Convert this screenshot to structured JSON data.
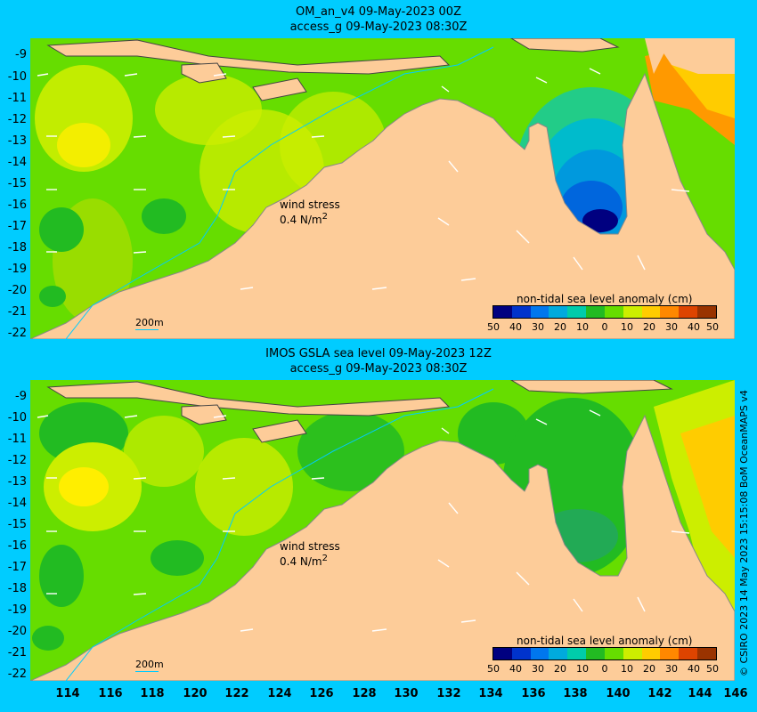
{
  "panels": [
    {
      "title_line1": "OM_an_v4  09-May-2023 00Z",
      "title_line2": "access_g 09-May-2023 08:30Z",
      "wind_label_line1": "wind stress",
      "wind_label_value": "0.4 N/m",
      "wind_label_sup": "2",
      "scale_label": "200m",
      "legend_title": "non-tidal sea level anomaly (cm)"
    },
    {
      "title_line1": "IMOS GSLA sea level  09-May-2023 12Z",
      "title_line2": "access_g 09-May-2023 08:30Z",
      "wind_label_line1": "wind stress",
      "wind_label_value": "0.4 N/m",
      "wind_label_sup": "2",
      "scale_label": "200m",
      "legend_title": "non-tidal sea level anomaly (cm)"
    }
  ],
  "y_ticks": [
    "-9",
    "-10",
    "-11",
    "-12",
    "-13",
    "-14",
    "-15",
    "-16",
    "-17",
    "-18",
    "-19",
    "-20",
    "-21",
    "-22"
  ],
  "x_ticks": [
    "114",
    "116",
    "118",
    "120",
    "122",
    "124",
    "126",
    "128",
    "130",
    "132",
    "134",
    "136",
    "138",
    "140",
    "142",
    "144",
    "146"
  ],
  "legend_ticks": [
    "50",
    "40",
    "30",
    "20",
    "10",
    "0",
    "10",
    "20",
    "30",
    "40",
    "50"
  ],
  "legend_colors": [
    "#000080",
    "#0033cc",
    "#0077ee",
    "#00aadd",
    "#00ccaa",
    "#22bb22",
    "#66dd00",
    "#ccee00",
    "#ffcc00",
    "#ff8800",
    "#dd4400",
    "#993300"
  ],
  "credit": "© CSIRO 2023   14 May 2023 15:15:08 BoM OceanMAPS v4",
  "colors": {
    "background": "#00ccff",
    "land": "#fdcc99",
    "sea_green": "#66dd00",
    "sea_yellowgreen": "#ccee00",
    "sea_yellow": "#ffee00",
    "sea_darkgreen": "#22bb22",
    "sea_blue": "#0088dd",
    "sea_darkblue": "#000080",
    "sea_orange": "#ff9900"
  }
}
